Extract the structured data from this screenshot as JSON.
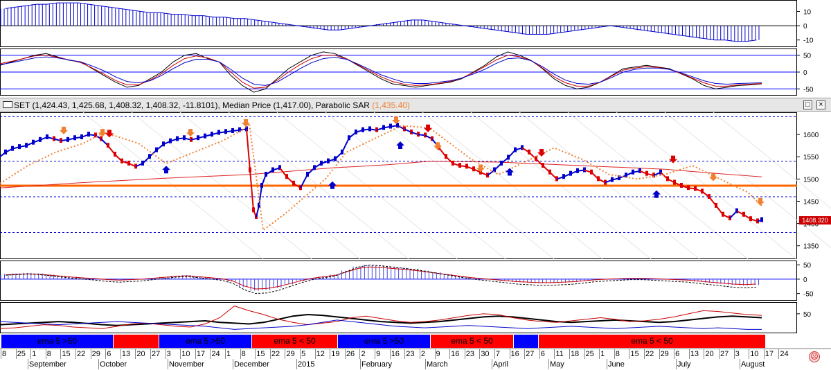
{
  "header": {
    "symbol_text": "SET (1,424.43, 1,425.68, 1,408.32, 1,408.32, -11.8101), Median Price (1,417.00), Parabolic SAR ",
    "sar_value": "(1,435.40)",
    "maximize_icon": "maximize-icon",
    "close_icon": "close-icon",
    "close_label": "×"
  },
  "price_tag": "1408.320",
  "chart_data": [
    {
      "type": "line",
      "pane": "price",
      "series": [
        {
          "name": "SET",
          "color": "#0000cc",
          "x": [
            0,
            8,
            18,
            28,
            38,
            48,
            58,
            68,
            78,
            88,
            98,
            108,
            118,
            128,
            138,
            146,
            156,
            166,
            176,
            186,
            196,
            206,
            216,
            226,
            236,
            246,
            256,
            266,
            276,
            286,
            296,
            306,
            316,
            326,
            336,
            346,
            356,
            361,
            366,
            370,
            374,
            378,
            384,
            394,
            404,
            414,
            424,
            434,
            444,
            454,
            464,
            474,
            484,
            494,
            504,
            514,
            524,
            534,
            544,
            554,
            564,
            574,
            584,
            594,
            604,
            614,
            624,
            634,
            644,
            654,
            664,
            674,
            684,
            694,
            704,
            714,
            724,
            734,
            744,
            754,
            764,
            774,
            784,
            794,
            804,
            814,
            824,
            834,
            844,
            854,
            864,
            874,
            884,
            894,
            904,
            914,
            924,
            934,
            944,
            954,
            964,
            974,
            984,
            994,
            1004,
            1014,
            1024,
            1034,
            1044,
            1054,
            1064,
            1074,
            1084,
            1094,
            1100
          ],
          "y": [
            1550,
            1560,
            1568,
            1572,
            1575,
            1582,
            1588,
            1594,
            1590,
            1586,
            1588,
            1592,
            1594,
            1600,
            1598,
            1590,
            1575,
            1555,
            1540,
            1535,
            1528,
            1535,
            1550,
            1565,
            1578,
            1585,
            1590,
            1592,
            1588,
            1592,
            1596,
            1600,
            1604,
            1606,
            1608,
            1610,
            1612,
            1520,
            1430,
            1415,
            1440,
            1485,
            1510,
            1520,
            1525,
            1505,
            1490,
            1480,
            1510,
            1525,
            1535,
            1540,
            1545,
            1560,
            1592,
            1605,
            1610,
            1612,
            1610,
            1615,
            1618,
            1620,
            1612,
            1605,
            1600,
            1598,
            1590,
            1570,
            1550,
            1535,
            1530,
            1528,
            1522,
            1515,
            1508,
            1520,
            1535,
            1548,
            1565,
            1570,
            1560,
            1545,
            1530,
            1515,
            1500,
            1505,
            1512,
            1518,
            1520,
            1515,
            1500,
            1492,
            1498,
            1502,
            1508,
            1515,
            1518,
            1512,
            1508,
            1515,
            1500,
            1492,
            1485,
            1480,
            1478,
            1472,
            1460,
            1440,
            1420,
            1412,
            1428,
            1420,
            1410,
            1405,
            1408
          ]
        },
        {
          "name": "Parabolic SAR",
          "color": "#f08030",
          "x": [
            0,
            40,
            80,
            120,
            150,
            170,
            200,
            240,
            280,
            320,
            350,
            360,
            380,
            410,
            440,
            470,
            500,
            540,
            580,
            620,
            650,
            680,
            720,
            760,
            800,
            840,
            880,
            920,
            960,
            1000,
            1040,
            1080,
            1100
          ],
          "y": [
            1490,
            1530,
            1560,
            1580,
            1604,
            1595,
            1580,
            1535,
            1560,
            1585,
            1610,
            1625,
            1385,
            1420,
            1460,
            1500,
            1560,
            1590,
            1620,
            1615,
            1580,
            1545,
            1510,
            1540,
            1570,
            1545,
            1510,
            1500,
            1510,
            1530,
            1500,
            1470,
            1440
          ]
        }
      ],
      "y_ticks": [
        "1600",
        "1550",
        "1500",
        "1450",
        "1400",
        "1350"
      ],
      "ylim": [
        1320,
        1650
      ],
      "horizontal_line": 1485
    },
    {
      "type": "bar",
      "pane": "histogram-top",
      "y_ticks": [
        "10",
        "0",
        "-10"
      ],
      "ylim": [
        -15,
        18
      ],
      "values": [
        12,
        13,
        14,
        15,
        15,
        16,
        16,
        16,
        15,
        14,
        13,
        12,
        11,
        10,
        9,
        9,
        8,
        8,
        7,
        7,
        6,
        6,
        5,
        5,
        4,
        3,
        2,
        1,
        0,
        -1,
        -2,
        -3,
        -3,
        -2,
        -1,
        0,
        1,
        2,
        3,
        4,
        4,
        3,
        2,
        1,
        0,
        -1,
        -2,
        -3,
        -4,
        -5,
        -6,
        -6,
        -6,
        -5,
        -4,
        -3,
        -2,
        -1,
        0,
        -1,
        -2,
        -3,
        -4,
        -5,
        -6,
        -7,
        -8,
        -9,
        -10,
        -10,
        -11,
        -11,
        -10
      ]
    },
    {
      "type": "line",
      "pane": "oscillator-2",
      "y_ticks": [
        "50",
        "0",
        "-50"
      ],
      "ylim": [
        -70,
        70
      ],
      "hlines": [
        50,
        0,
        -50
      ],
      "series": [
        {
          "name": "fast",
          "color": "#000000",
          "values": [
            20,
            30,
            40,
            50,
            55,
            45,
            35,
            30,
            10,
            -10,
            -30,
            -45,
            -40,
            -20,
            0,
            30,
            50,
            55,
            40,
            30,
            -10,
            -40,
            -60,
            -50,
            -20,
            10,
            30,
            50,
            60,
            55,
            40,
            20,
            0,
            -20,
            -35,
            -40,
            -45,
            -40,
            -35,
            -30,
            -20,
            0,
            20,
            45,
            60,
            50,
            35,
            10,
            -20,
            -40,
            -50,
            -45,
            -30,
            -10,
            10,
            15,
            20,
            15,
            10,
            -5,
            -20,
            -40,
            -50,
            -45,
            -40,
            -38,
            -35
          ]
        },
        {
          "name": "slow",
          "color": "#cc0000",
          "values": [
            25,
            32,
            40,
            48,
            50,
            44,
            36,
            28,
            12,
            -6,
            -25,
            -38,
            -38,
            -24,
            -5,
            20,
            40,
            48,
            42,
            30,
            0,
            -30,
            -48,
            -45,
            -25,
            0,
            22,
            40,
            50,
            50,
            40,
            22,
            4,
            -14,
            -28,
            -36,
            -40,
            -38,
            -34,
            -28,
            -18,
            -2,
            16,
            36,
            50,
            46,
            34,
            12,
            -14,
            -32,
            -42,
            -42,
            -30,
            -12,
            6,
            12,
            16,
            14,
            8,
            -4,
            -18,
            -32,
            -42,
            -42,
            -38,
            -36,
            -34
          ]
        },
        {
          "name": "signal",
          "color": "#0000cc",
          "values": [
            22,
            28,
            35,
            42,
            45,
            42,
            36,
            30,
            18,
            4,
            -14,
            -28,
            -32,
            -26,
            -10,
            10,
            28,
            38,
            38,
            30,
            8,
            -18,
            -36,
            -40,
            -30,
            -10,
            10,
            28,
            40,
            44,
            38,
            24,
            8,
            -8,
            -20,
            -30,
            -34,
            -34,
            -30,
            -26,
            -18,
            -6,
            8,
            26,
            40,
            42,
            34,
            16,
            -6,
            -24,
            -34,
            -36,
            -30,
            -16,
            0,
            8,
            12,
            12,
            8,
            -2,
            -14,
            -26,
            -34,
            -36,
            -34,
            -33,
            -32
          ]
        }
      ]
    },
    {
      "type": "bar",
      "pane": "oscillator-4",
      "y_ticks": [
        "50",
        "0",
        "-50"
      ],
      "ylim": [
        -75,
        65
      ],
      "values": [
        18,
        20,
        22,
        20,
        16,
        12,
        8,
        5,
        2,
        -2,
        -4,
        -2,
        0,
        4,
        8,
        12,
        14,
        10,
        6,
        2,
        -8,
        -28,
        -40,
        -38,
        -30,
        -18,
        -6,
        4,
        10,
        16,
        30,
        44,
        50,
        48,
        44,
        40,
        36,
        30,
        24,
        18,
        12,
        6,
        2,
        -2,
        -6,
        -10,
        -12,
        -14,
        -14,
        -12,
        -10,
        -6,
        -2,
        0,
        2,
        4,
        4,
        2,
        0,
        -2,
        -4,
        -8,
        -12,
        -16,
        -20,
        -22,
        -20
      ],
      "series": [
        {
          "name": "red line",
          "color": "#cc0000"
        },
        {
          "name": "dashed",
          "color": "#000000"
        }
      ]
    },
    {
      "type": "line",
      "pane": "oscillator-5",
      "y_ticks": [
        "50"
      ],
      "ylim": [
        0,
        80
      ],
      "series": [
        {
          "name": "black",
          "color": "#000000",
          "values": [
            22,
            24,
            26,
            28,
            30,
            28,
            25,
            22,
            20,
            22,
            24,
            26,
            28,
            30,
            32,
            28,
            26,
            24,
            28,
            36,
            44,
            48,
            46,
            42,
            38,
            34,
            30,
            28,
            26,
            28,
            30,
            34,
            38,
            42,
            44,
            42,
            38,
            34,
            30,
            28,
            30,
            32,
            34,
            32,
            30,
            28,
            30,
            34,
            38,
            42,
            44,
            42,
            40
          ]
        },
        {
          "name": "red",
          "color": "#cc0000",
          "values": [
            12,
            14,
            18,
            22,
            20,
            16,
            14,
            12,
            18,
            24,
            26,
            22,
            18,
            16,
            24,
            40,
            70,
            58,
            48,
            36,
            28,
            22,
            26,
            30,
            40,
            44,
            38,
            32,
            28,
            30,
            34,
            40,
            46,
            50,
            48,
            40,
            34,
            30,
            28,
            32,
            36,
            40,
            36,
            30,
            32,
            36,
            42,
            50,
            58,
            56,
            52,
            48,
            46
          ]
        },
        {
          "name": "blue",
          "color": "#0000cc",
          "values": [
            30,
            28,
            26,
            24,
            22,
            24,
            26,
            28,
            30,
            28,
            26,
            24,
            22,
            20,
            18,
            14,
            10,
            12,
            14,
            16,
            18,
            22,
            28,
            34,
            30,
            26,
            22,
            18,
            16,
            14,
            16,
            18,
            20,
            18,
            16,
            14,
            12,
            14,
            16,
            18,
            16,
            14,
            12,
            14,
            16,
            18,
            16,
            14,
            12,
            14,
            12,
            10,
            10
          ]
        }
      ]
    }
  ],
  "band": {
    "segments": [
      {
        "label": "ema 5 >50",
        "color": "#0000ff"
      },
      {
        "label": "",
        "color": "#ff0000"
      },
      {
        "label": "ema 5 >50",
        "color": "#0000ff"
      },
      {
        "label": "ema 5 < 50",
        "color": "#ff0000"
      },
      {
        "label": "ema 5 >50",
        "color": "#0000ff"
      },
      {
        "label": "ema 5 < 50",
        "color": "#ff0000"
      },
      {
        "label": "",
        "color": "#0000ff"
      },
      {
        "label": "ema 5 < 50",
        "color": "#ff0000"
      }
    ]
  },
  "date_axis": {
    "days": [
      "8",
      "25",
      "1",
      "8",
      "15",
      "22",
      "29",
      "6",
      "13",
      "20",
      "27",
      "3",
      "10",
      "17",
      "24",
      "1",
      "8",
      "15",
      "22",
      "29",
      "5",
      "12",
      "19",
      "26",
      "2",
      "9",
      "16",
      "23",
      "2",
      "9",
      "16",
      "23",
      "30",
      "7",
      "16",
      "27",
      "6",
      "11",
      "18",
      "25",
      "1",
      "8",
      "15",
      "22",
      "29",
      "6",
      "13",
      "20",
      "27",
      "3",
      "10",
      "17",
      "24"
    ],
    "months": [
      "September",
      "October",
      "November",
      "December",
      "2015",
      "February",
      "March",
      "April",
      "May",
      "June",
      "July",
      "August"
    ]
  }
}
